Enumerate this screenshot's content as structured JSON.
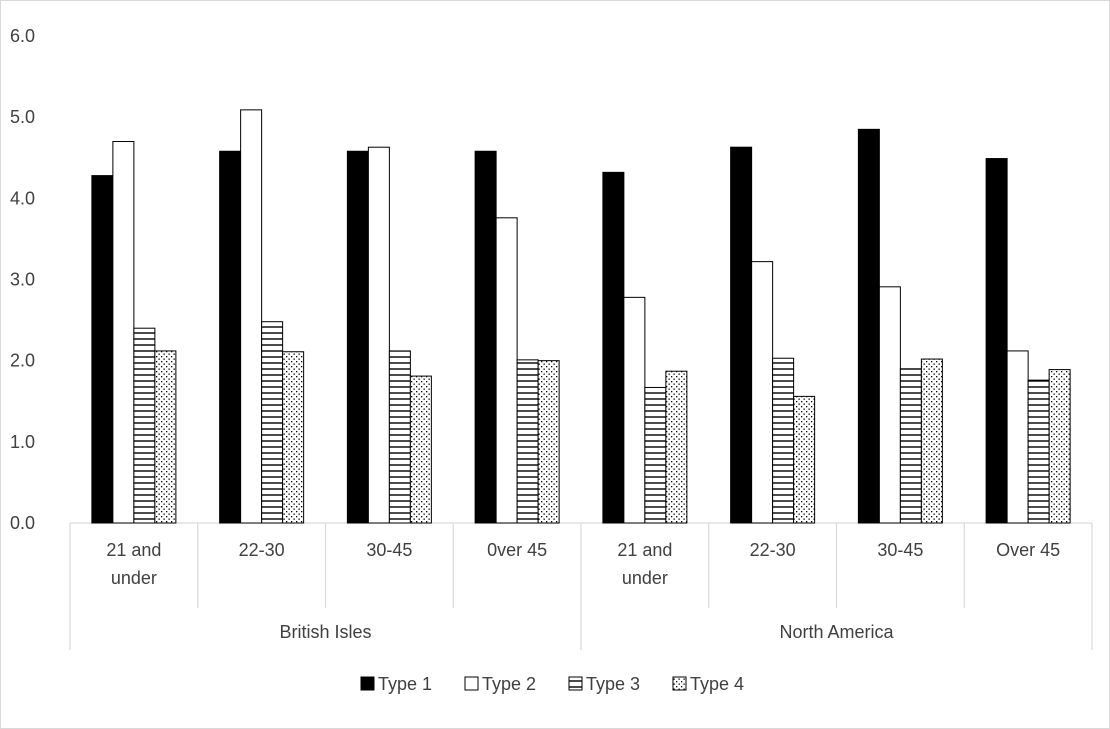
{
  "chart_data": {
    "type": "bar",
    "title": "",
    "xlabel": "",
    "ylabel": "",
    "ylim": [
      0,
      6
    ],
    "yticks": [
      "0.0",
      "1.0",
      "2.0",
      "3.0",
      "4.0",
      "5.0",
      "6.0"
    ],
    "grid": false,
    "legend_position": "bottom",
    "groups": [
      {
        "name": "British Isles",
        "categories": [
          [
            "21 and",
            "under"
          ],
          [
            "22-30"
          ],
          [
            "30-45"
          ],
          [
            "0ver 45"
          ]
        ]
      },
      {
        "name": "North America",
        "categories": [
          [
            "21 and",
            "under"
          ],
          [
            "22-30"
          ],
          [
            "30-45"
          ],
          [
            "Over 45"
          ]
        ]
      }
    ],
    "series": [
      {
        "name": "Type 1",
        "pattern": "solid",
        "values": [
          4.28,
          4.58,
          4.58,
          4.58,
          4.32,
          4.63,
          4.85,
          4.49
        ]
      },
      {
        "name": "Type 2",
        "pattern": "empty",
        "values": [
          4.7,
          5.09,
          4.63,
          3.76,
          2.78,
          3.22,
          2.91,
          2.12
        ]
      },
      {
        "name": "Type 3",
        "pattern": "horizontal-lines",
        "values": [
          2.4,
          2.48,
          2.12,
          2.01,
          1.67,
          2.03,
          1.9,
          1.76
        ]
      },
      {
        "name": "Type 4",
        "pattern": "dots",
        "values": [
          2.12,
          2.11,
          1.81,
          2.0,
          1.87,
          1.56,
          2.02,
          1.89
        ]
      }
    ],
    "colors": {
      "fill_dark": "#000000",
      "fill_light": "#ffffff",
      "axis": "#d9d9d9",
      "text": "#404040"
    }
  }
}
